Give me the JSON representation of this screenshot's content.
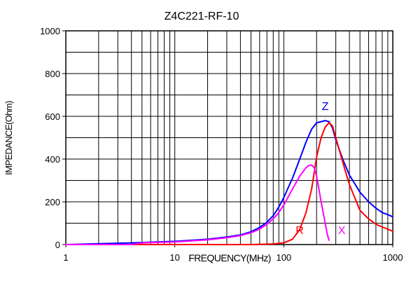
{
  "chart_data": {
    "type": "line",
    "title": "Z4C221-RF-10",
    "xlabel": "FREQUENCY(MHz)",
    "ylabel": "IMPEDANCE(Ohm)",
    "x_scale": "log",
    "xlim": [
      1,
      1000
    ],
    "ylim": [
      0,
      1000
    ],
    "grid": true,
    "x_ticks": [
      1,
      10,
      100,
      1000
    ],
    "x_tick_labels": [
      "1",
      "10",
      "100",
      "1000"
    ],
    "y_ticks": [
      0,
      200,
      400,
      600,
      800,
      1000
    ],
    "y_tick_labels": [
      "0",
      "200",
      "400",
      "600",
      "800",
      "1000"
    ],
    "series": [
      {
        "name": "Z",
        "color": "#0000ff",
        "x": [
          1,
          4,
          10,
          20,
          30,
          40,
          50,
          60,
          70,
          80,
          90,
          100,
          120,
          140,
          160,
          180,
          200,
          220,
          240,
          260,
          280,
          300,
          350,
          400,
          500,
          600,
          700,
          800,
          900,
          1000
        ],
        "y": [
          0,
          8,
          15,
          25,
          35,
          45,
          60,
          80,
          105,
          135,
          175,
          220,
          310,
          400,
          480,
          540,
          570,
          575,
          580,
          575,
          545,
          490,
          395,
          325,
          245,
          200,
          170,
          150,
          140,
          130
        ]
      },
      {
        "name": "R",
        "color": "#ff0000",
        "x": [
          1,
          10,
          50,
          80,
          100,
          120,
          140,
          160,
          180,
          200,
          220,
          240,
          260,
          280,
          300,
          350,
          400,
          500,
          600,
          700,
          800,
          900,
          1000
        ],
        "y": [
          0,
          0,
          0,
          3,
          8,
          25,
          70,
          150,
          260,
          410,
          500,
          550,
          570,
          555,
          500,
          380,
          280,
          160,
          120,
          95,
          82,
          72,
          62
        ]
      },
      {
        "name": "X",
        "color": "#ff00ff",
        "x": [
          1,
          4,
          5,
          10,
          20,
          30,
          40,
          50,
          60,
          70,
          80,
          90,
          100,
          120,
          140,
          160,
          170,
          180,
          190,
          200,
          210,
          220,
          230,
          240,
          250,
          260
        ],
        "y": [
          0,
          0,
          8,
          12,
          22,
          32,
          42,
          55,
          72,
          95,
          120,
          150,
          185,
          260,
          320,
          360,
          370,
          372,
          360,
          320,
          260,
          200,
          150,
          100,
          50,
          20
        ]
      }
    ],
    "series_labels": [
      {
        "text": "Z",
        "color": "#0000ff",
        "x": 240,
        "y": 630
      },
      {
        "text": "R",
        "color": "#ff0000",
        "x": 140,
        "y": 50
      },
      {
        "text": "X",
        "color": "#ff00ff",
        "x": 340,
        "y": 50
      }
    ]
  }
}
